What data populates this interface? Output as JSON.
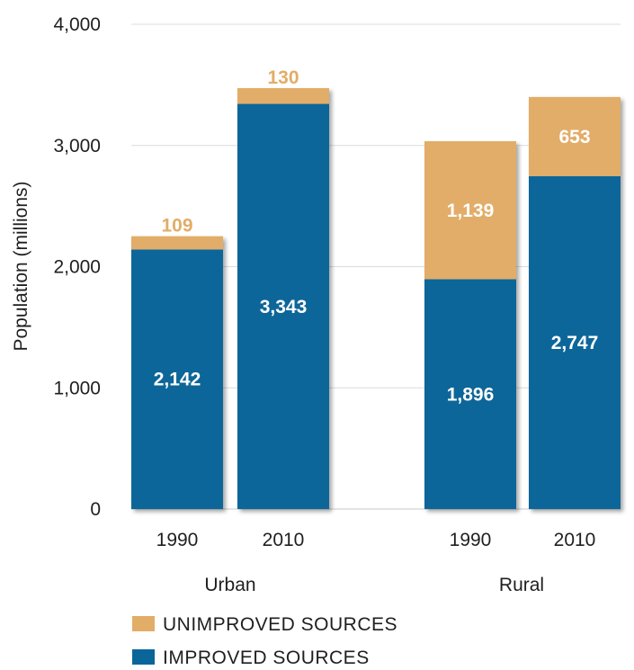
{
  "chart_data": {
    "type": "bar",
    "stacked": true,
    "ylabel": "Population (millions)",
    "xlabel": "",
    "ylim": [
      0,
      4000
    ],
    "yticks": [
      0,
      1000,
      2000,
      3000,
      4000
    ],
    "ytick_labels": [
      "0",
      "1,000",
      "2,000",
      "3,000",
      "4,000"
    ],
    "grid": true,
    "legend_position": "bottom-left",
    "groups": [
      {
        "label": "Urban",
        "categories": [
          "1990",
          "2010"
        ]
      },
      {
        "label": "Rural",
        "categories": [
          "1990",
          "2010"
        ]
      }
    ],
    "categories": [
      "1990",
      "2010",
      "1990",
      "2010"
    ],
    "series": [
      {
        "name": "IMPROVED SOURCES",
        "color": "#0a6699",
        "values": [
          2142,
          3343,
          1896,
          2747
        ],
        "labels": [
          "2,142",
          "3,343",
          "1,896",
          "2,747"
        ]
      },
      {
        "name": "UNIMPROVED SOURCES",
        "color": "#e2ad67",
        "values": [
          109,
          130,
          1139,
          653
        ],
        "labels": [
          "109",
          "130",
          "1,139",
          "653"
        ]
      }
    ],
    "legend": [
      "UNIMPROVED SOURCES",
      "IMPROVED SOURCES"
    ]
  }
}
